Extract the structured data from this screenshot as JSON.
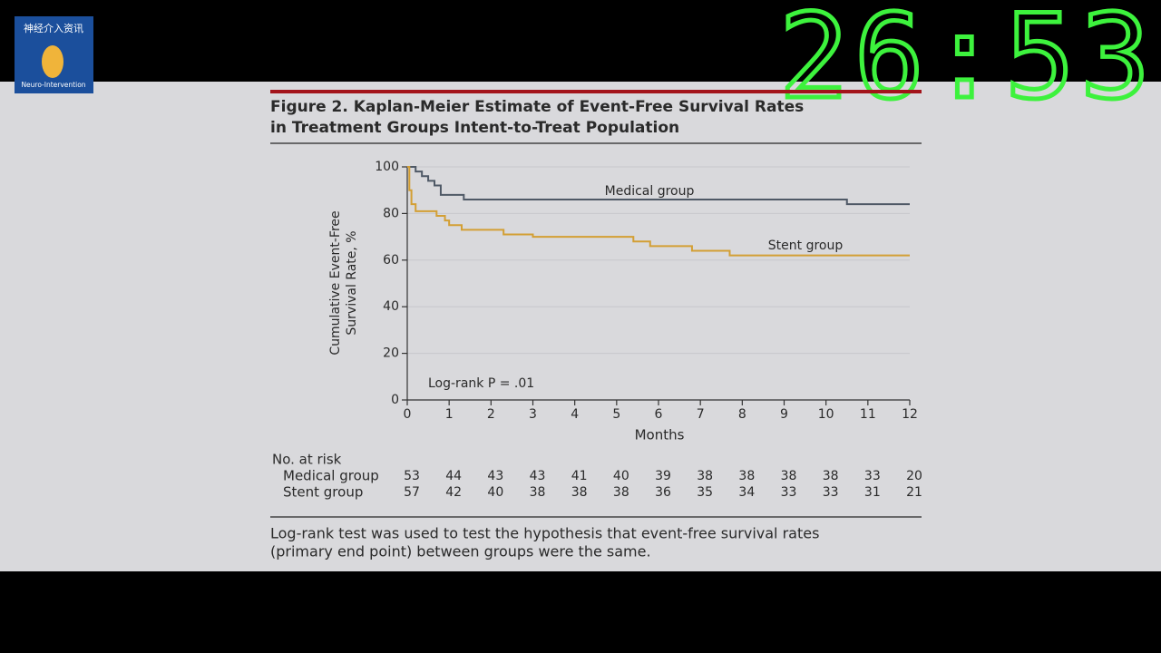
{
  "overlay": {
    "timer": "26:53",
    "logo_title": "神经介入资讯",
    "logo_subtitle": "Neuro-Intervention"
  },
  "chart_data": {
    "type": "line",
    "step": true,
    "title": [
      "Figure 2. Kaplan-Meier Estimate of Event-Free Survival Rates",
      "in Treatment Groups Intent-to-Treat Population"
    ],
    "ylabel": [
      "Cumulative Event-Free",
      "Survival Rate, %"
    ],
    "xlabel": "Months",
    "annotation": "Log-rank P = .01",
    "xlim": [
      0,
      12
    ],
    "xticks": [
      0,
      1,
      2,
      3,
      4,
      5,
      6,
      7,
      8,
      9,
      10,
      11,
      12
    ],
    "ylim": [
      0,
      100
    ],
    "yticks": [
      0,
      20,
      40,
      60,
      80,
      100
    ],
    "grid": true,
    "series": [
      {
        "name": "Medical group",
        "color": "#4f5966",
        "x": [
          0,
          0.2,
          0.35,
          0.5,
          0.65,
          0.8,
          1.35,
          10.5,
          12
        ],
        "values": [
          100,
          98,
          96,
          94,
          92,
          88,
          86,
          84,
          84
        ]
      },
      {
        "name": "Stent group",
        "color": "#d39f34",
        "x": [
          0,
          0.05,
          0.1,
          0.2,
          0.7,
          0.9,
          1.0,
          1.3,
          2.3,
          3.0,
          5.4,
          5.8,
          6.8,
          7.7,
          12
        ],
        "values": [
          100,
          90,
          84,
          81,
          79,
          77,
          75,
          73,
          71,
          70,
          68,
          66,
          64,
          62,
          62
        ]
      }
    ],
    "risk_table": {
      "title": "No. at risk",
      "rows": [
        {
          "name": "Medical group",
          "values": [
            53,
            44,
            43,
            43,
            41,
            40,
            39,
            38,
            38,
            38,
            38,
            33,
            20
          ]
        },
        {
          "name": "Stent group",
          "values": [
            57,
            42,
            40,
            38,
            38,
            38,
            36,
            35,
            34,
            33,
            33,
            31,
            21
          ]
        }
      ]
    },
    "footnote": [
      "Log-rank test was used to test the hypothesis that event-free survival rates",
      "(primary end point) between groups were the same."
    ]
  }
}
